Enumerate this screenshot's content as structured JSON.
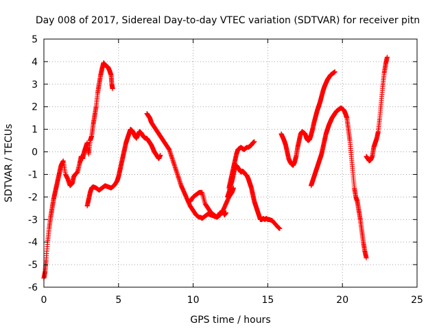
{
  "chart_data": {
    "type": "scatter",
    "title": "Day 008 of 2017, Sidereal Day-to-day VTEC variation (SDTVAR) for receiver pitn",
    "xlabel": "GPS time / hours",
    "ylabel": "SDTVAR / TECUs",
    "xlim": [
      0,
      25
    ],
    "ylim": [
      -6,
      5
    ],
    "x_ticks": [
      "0",
      "5",
      "10",
      "15",
      "20",
      "25"
    ],
    "y_ticks": [
      "-6",
      "-5",
      "-4",
      "-3",
      "-2",
      "-1",
      "0",
      "1",
      "2",
      "3",
      "4",
      "5"
    ],
    "grid": true,
    "marker": "+",
    "series_color": "#ff0000",
    "series": [
      {
        "x": [
          0.0,
          0.08,
          0.15,
          0.25,
          0.35,
          0.45,
          0.55,
          0.65,
          0.75,
          0.85,
          0.95,
          1.05,
          1.15,
          1.3,
          1.45,
          1.6,
          1.75,
          1.9,
          2.0,
          2.1,
          2.25,
          2.4,
          2.5,
          2.6,
          2.7,
          2.8,
          2.9,
          3.0,
          3.1,
          3.2,
          3.3,
          3.4,
          3.5,
          3.6,
          3.7,
          3.8,
          3.9,
          4.0,
          4.1,
          4.2,
          4.3,
          4.4,
          4.5,
          4.55,
          4.6
        ],
        "y": [
          -5.6,
          -5.3,
          -4.8,
          -4.0,
          -3.4,
          -2.9,
          -2.5,
          -2.1,
          -1.8,
          -1.5,
          -1.2,
          -0.9,
          -0.6,
          -0.4,
          -1.0,
          -1.2,
          -1.5,
          -1.4,
          -1.1,
          -1.0,
          -0.9,
          -0.5,
          -0.2,
          -0.3,
          0.0,
          0.2,
          0.4,
          -0.1,
          0.5,
          0.7,
          1.2,
          1.6,
          2.0,
          2.6,
          3.0,
          3.4,
          3.7,
          3.95,
          3.85,
          3.8,
          3.75,
          3.6,
          3.4,
          3.0,
          2.8
        ]
      },
      {
        "x": [
          2.9,
          3.0,
          3.1,
          3.2,
          3.3,
          3.5,
          3.7,
          3.9,
          4.1,
          4.3,
          4.5,
          4.7,
          4.9,
          5.0,
          5.1,
          5.2,
          5.3,
          5.4,
          5.5,
          5.6,
          5.7,
          5.8,
          5.9,
          6.0,
          6.1,
          6.2,
          6.3,
          6.4,
          6.5,
          6.6,
          6.7,
          6.8,
          6.9,
          7.0,
          7.1,
          7.2,
          7.3,
          7.4,
          7.5,
          7.6,
          7.7,
          7.8
        ],
        "y": [
          -2.4,
          -2.1,
          -1.8,
          -1.6,
          -1.55,
          -1.6,
          -1.7,
          -1.6,
          -1.5,
          -1.55,
          -1.6,
          -1.5,
          -1.3,
          -1.1,
          -0.8,
          -0.5,
          -0.2,
          0.1,
          0.4,
          0.6,
          0.8,
          1.0,
          0.95,
          0.85,
          0.7,
          0.6,
          0.75,
          0.9,
          0.85,
          0.75,
          0.65,
          0.6,
          0.6,
          0.5,
          0.4,
          0.3,
          0.15,
          0.0,
          -0.1,
          -0.2,
          -0.3,
          -0.15
        ]
      },
      {
        "x": [
          6.9,
          7.0,
          7.1,
          7.2,
          7.4,
          7.6,
          7.8,
          8.0,
          8.2,
          8.4,
          8.6,
          8.8,
          9.0,
          9.2,
          9.4,
          9.6,
          9.8,
          10.0,
          10.2,
          10.4,
          10.5,
          10.6,
          10.8,
          11.0,
          11.2,
          11.4,
          11.6,
          11.8,
          12.0,
          12.2,
          12.4,
          12.6,
          12.7
        ],
        "y": [
          1.7,
          1.6,
          1.5,
          1.3,
          1.1,
          0.9,
          0.7,
          0.5,
          0.3,
          0.1,
          -0.3,
          -0.7,
          -1.1,
          -1.5,
          -1.8,
          -2.1,
          -2.4,
          -2.6,
          -2.8,
          -2.9,
          -2.9,
          -2.95,
          -2.85,
          -2.75,
          -2.8,
          -2.85,
          -2.9,
          -2.8,
          -2.6,
          -2.3,
          -2.0,
          -1.8,
          -1.6
        ]
      },
      {
        "x": [
          9.8,
          10.0,
          10.2,
          10.4,
          10.6,
          10.8,
          11.0,
          11.2,
          11.4,
          11.6,
          11.8,
          12.0,
          12.1,
          12.2
        ],
        "y": [
          -2.2,
          -2.0,
          -1.9,
          -1.8,
          -1.8,
          -2.3,
          -2.5,
          -2.7,
          -2.8,
          -2.9,
          -2.7,
          -2.65,
          -2.8,
          -2.7
        ]
      },
      {
        "x": [
          12.3,
          12.4,
          12.5,
          12.6,
          12.7,
          12.8,
          12.9,
          13.0,
          13.1,
          13.2,
          13.3,
          13.4,
          13.5,
          13.6,
          13.7,
          13.8,
          13.9,
          14.0,
          14.1,
          14.2,
          14.3,
          14.4,
          14.5,
          14.6,
          14.7,
          14.8,
          14.9,
          15.0,
          15.1,
          15.3,
          15.5,
          15.7,
          15.8
        ],
        "y": [
          -2.0,
          -1.8,
          -1.5,
          -1.3,
          -1.0,
          -0.7,
          -0.6,
          -0.7,
          -0.8,
          -0.9,
          -0.85,
          -0.9,
          -1.0,
          -1.05,
          -1.2,
          -1.4,
          -1.6,
          -1.9,
          -2.2,
          -2.4,
          -2.6,
          -2.8,
          -3.0,
          -3.0,
          -2.95,
          -3.0,
          -2.95,
          -3.0,
          -3.0,
          -3.05,
          -3.2,
          -3.35,
          -3.4
        ]
      },
      {
        "x": [
          12.4,
          12.5,
          12.6,
          12.7,
          12.8,
          12.9,
          13.0,
          13.1,
          13.2,
          13.3,
          13.4,
          13.5,
          13.6,
          13.7,
          13.8,
          13.9,
          14.0,
          14.1
        ],
        "y": [
          -1.6,
          -1.3,
          -1.0,
          -0.7,
          -0.4,
          -0.1,
          0.1,
          0.15,
          0.2,
          0.15,
          0.1,
          0.15,
          0.2,
          0.2,
          0.25,
          0.3,
          0.4,
          0.45
        ]
      },
      {
        "x": [
          15.9,
          16.0,
          16.1,
          16.2,
          16.3,
          16.4,
          16.5,
          16.6,
          16.7,
          16.8,
          16.9,
          17.0,
          17.1,
          17.2,
          17.3,
          17.4,
          17.5,
          17.6,
          17.7,
          17.8,
          17.9,
          18.0,
          18.1,
          18.2,
          18.3,
          18.4,
          18.5,
          18.6,
          18.7,
          18.8,
          18.9,
          19.0,
          19.1,
          19.2,
          19.3,
          19.4,
          19.5
        ],
        "y": [
          0.8,
          0.65,
          0.5,
          0.3,
          0.0,
          -0.3,
          -0.45,
          -0.55,
          -0.6,
          -0.45,
          -0.2,
          0.2,
          0.5,
          0.8,
          0.9,
          0.85,
          0.8,
          0.6,
          0.5,
          0.55,
          0.75,
          1.0,
          1.3,
          1.55,
          1.8,
          2.0,
          2.2,
          2.45,
          2.7,
          2.9,
          3.05,
          3.2,
          3.3,
          3.4,
          3.45,
          3.5,
          3.55
        ]
      },
      {
        "x": [
          17.9,
          18.0,
          18.1,
          18.2,
          18.3,
          18.4,
          18.5,
          18.6,
          18.7,
          18.8,
          18.9,
          19.0,
          19.1,
          19.2,
          19.3,
          19.4,
          19.5,
          19.6,
          19.7,
          19.8,
          19.9,
          20.0,
          20.1,
          20.2,
          20.3,
          20.4,
          20.5,
          20.6,
          20.7,
          20.8,
          20.9,
          21.0,
          21.1,
          21.2,
          21.3,
          21.4,
          21.5,
          21.6
        ],
        "y": [
          -1.5,
          -1.3,
          -1.1,
          -0.9,
          -0.7,
          -0.5,
          -0.3,
          -0.1,
          0.2,
          0.5,
          0.8,
          1.0,
          1.2,
          1.35,
          1.5,
          1.6,
          1.7,
          1.8,
          1.85,
          1.9,
          1.95,
          1.9,
          1.85,
          1.7,
          1.5,
          1.0,
          0.5,
          -0.2,
          -0.9,
          -1.6,
          -2.0,
          -2.2,
          -2.6,
          -3.0,
          -3.5,
          -4.0,
          -4.4,
          -4.7
        ]
      },
      {
        "x": [
          21.6,
          21.7,
          21.8,
          21.9,
          22.0,
          22.1,
          22.2,
          22.3,
          22.4,
          22.5,
          22.6,
          22.7,
          22.8,
          22.9,
          23.0
        ],
        "y": [
          -0.2,
          -0.3,
          -0.4,
          -0.35,
          -0.2,
          0.2,
          0.4,
          0.6,
          0.9,
          1.5,
          2.2,
          2.9,
          3.5,
          3.9,
          4.2
        ]
      }
    ]
  }
}
